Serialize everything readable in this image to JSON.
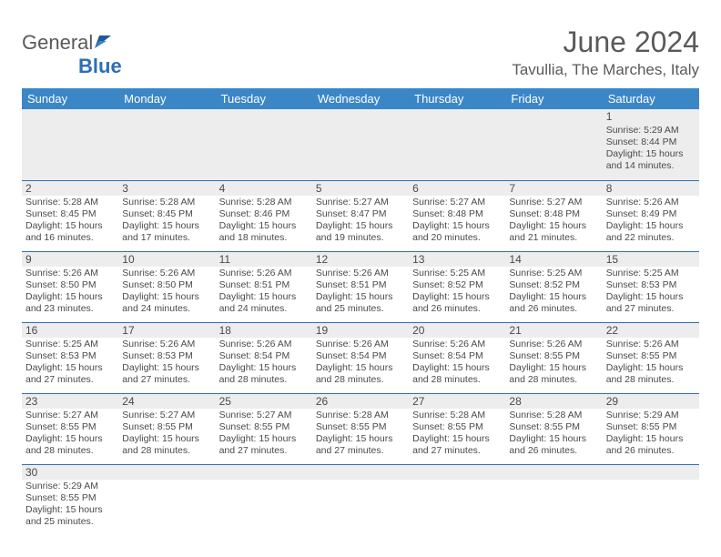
{
  "logo": {
    "text1": "General",
    "text2": "Blue"
  },
  "title": "June 2024",
  "location": "Tavullia, The Marches, Italy",
  "colors": {
    "header_bg": "#3b86c7",
    "header_text": "#ffffff",
    "daynum_bg": "#ededed",
    "cell_border": "#2d6fb5",
    "body_text": "#4a4a4a",
    "title_text": "#5a5a5a",
    "logo_gray": "#5a5a5a",
    "logo_blue": "#2d6fb5"
  },
  "day_headers": [
    "Sunday",
    "Monday",
    "Tuesday",
    "Wednesday",
    "Thursday",
    "Friday",
    "Saturday"
  ],
  "weeks": [
    [
      null,
      null,
      null,
      null,
      null,
      null,
      {
        "n": "1",
        "sr": "5:29 AM",
        "ss": "8:44 PM",
        "dl": "15 hours and 14 minutes."
      }
    ],
    [
      {
        "n": "2",
        "sr": "5:28 AM",
        "ss": "8:45 PM",
        "dl": "15 hours and 16 minutes."
      },
      {
        "n": "3",
        "sr": "5:28 AM",
        "ss": "8:45 PM",
        "dl": "15 hours and 17 minutes."
      },
      {
        "n": "4",
        "sr": "5:28 AM",
        "ss": "8:46 PM",
        "dl": "15 hours and 18 minutes."
      },
      {
        "n": "5",
        "sr": "5:27 AM",
        "ss": "8:47 PM",
        "dl": "15 hours and 19 minutes."
      },
      {
        "n": "6",
        "sr": "5:27 AM",
        "ss": "8:48 PM",
        "dl": "15 hours and 20 minutes."
      },
      {
        "n": "7",
        "sr": "5:27 AM",
        "ss": "8:48 PM",
        "dl": "15 hours and 21 minutes."
      },
      {
        "n": "8",
        "sr": "5:26 AM",
        "ss": "8:49 PM",
        "dl": "15 hours and 22 minutes."
      }
    ],
    [
      {
        "n": "9",
        "sr": "5:26 AM",
        "ss": "8:50 PM",
        "dl": "15 hours and 23 minutes."
      },
      {
        "n": "10",
        "sr": "5:26 AM",
        "ss": "8:50 PM",
        "dl": "15 hours and 24 minutes."
      },
      {
        "n": "11",
        "sr": "5:26 AM",
        "ss": "8:51 PM",
        "dl": "15 hours and 24 minutes."
      },
      {
        "n": "12",
        "sr": "5:26 AM",
        "ss": "8:51 PM",
        "dl": "15 hours and 25 minutes."
      },
      {
        "n": "13",
        "sr": "5:25 AM",
        "ss": "8:52 PM",
        "dl": "15 hours and 26 minutes."
      },
      {
        "n": "14",
        "sr": "5:25 AM",
        "ss": "8:52 PM",
        "dl": "15 hours and 26 minutes."
      },
      {
        "n": "15",
        "sr": "5:25 AM",
        "ss": "8:53 PM",
        "dl": "15 hours and 27 minutes."
      }
    ],
    [
      {
        "n": "16",
        "sr": "5:25 AM",
        "ss": "8:53 PM",
        "dl": "15 hours and 27 minutes."
      },
      {
        "n": "17",
        "sr": "5:26 AM",
        "ss": "8:53 PM",
        "dl": "15 hours and 27 minutes."
      },
      {
        "n": "18",
        "sr": "5:26 AM",
        "ss": "8:54 PM",
        "dl": "15 hours and 28 minutes."
      },
      {
        "n": "19",
        "sr": "5:26 AM",
        "ss": "8:54 PM",
        "dl": "15 hours and 28 minutes."
      },
      {
        "n": "20",
        "sr": "5:26 AM",
        "ss": "8:54 PM",
        "dl": "15 hours and 28 minutes."
      },
      {
        "n": "21",
        "sr": "5:26 AM",
        "ss": "8:55 PM",
        "dl": "15 hours and 28 minutes."
      },
      {
        "n": "22",
        "sr": "5:26 AM",
        "ss": "8:55 PM",
        "dl": "15 hours and 28 minutes."
      }
    ],
    [
      {
        "n": "23",
        "sr": "5:27 AM",
        "ss": "8:55 PM",
        "dl": "15 hours and 28 minutes."
      },
      {
        "n": "24",
        "sr": "5:27 AM",
        "ss": "8:55 PM",
        "dl": "15 hours and 28 minutes."
      },
      {
        "n": "25",
        "sr": "5:27 AM",
        "ss": "8:55 PM",
        "dl": "15 hours and 27 minutes."
      },
      {
        "n": "26",
        "sr": "5:28 AM",
        "ss": "8:55 PM",
        "dl": "15 hours and 27 minutes."
      },
      {
        "n": "27",
        "sr": "5:28 AM",
        "ss": "8:55 PM",
        "dl": "15 hours and 27 minutes."
      },
      {
        "n": "28",
        "sr": "5:28 AM",
        "ss": "8:55 PM",
        "dl": "15 hours and 26 minutes."
      },
      {
        "n": "29",
        "sr": "5:29 AM",
        "ss": "8:55 PM",
        "dl": "15 hours and 26 minutes."
      }
    ],
    [
      {
        "n": "30",
        "sr": "5:29 AM",
        "ss": "8:55 PM",
        "dl": "15 hours and 25 minutes."
      },
      null,
      null,
      null,
      null,
      null,
      null
    ]
  ],
  "labels": {
    "sunrise": "Sunrise:",
    "sunset": "Sunset:",
    "daylight": "Daylight:"
  }
}
